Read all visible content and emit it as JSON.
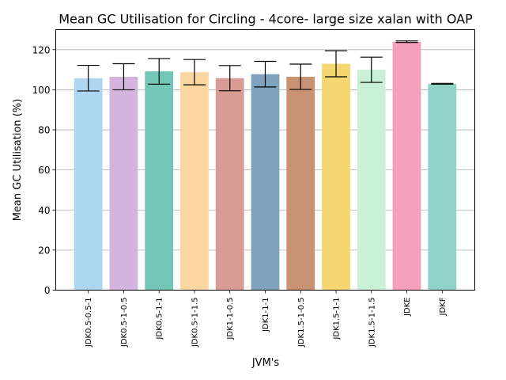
{
  "chart_data": {
    "type": "bar",
    "title": "Mean GC Utilisation for Circling - 4core- large size xalan with OAP",
    "xlabel": "JVM's",
    "ylabel": "Mean GC Utilisation (%)",
    "ylim": [
      0,
      130
    ],
    "yticks": [
      0,
      20,
      40,
      60,
      80,
      100,
      120
    ],
    "grid": "y",
    "categories": [
      "JDK0.5-0.5-1",
      "JDK0.5-1-0.5",
      "JDK0.5-1-1",
      "JDK0.5-1-1.5",
      "JDK1-1-0.5",
      "JDK1-1-1",
      "JDK1.5-1-0.5",
      "JDK1.5-1-1",
      "JDK1.5-1-1.5",
      "JDKE",
      "JDKF"
    ],
    "values": [
      105.8,
      106.5,
      109.2,
      108.8,
      105.8,
      107.8,
      106.5,
      113.0,
      110.0,
      124.0,
      103.0
    ],
    "errors": [
      6.4,
      6.5,
      6.4,
      6.3,
      6.3,
      6.4,
      6.3,
      6.5,
      6.3,
      0.4,
      0.2
    ],
    "colors": [
      "#aed6f1",
      "#d2b4de",
      "#73c6b6",
      "#fad7a0",
      "#d99c94",
      "#7fa2bd",
      "#c99373",
      "#f4d770",
      "#c9f1d8",
      "#f59fbc",
      "#8fd2c8"
    ]
  }
}
